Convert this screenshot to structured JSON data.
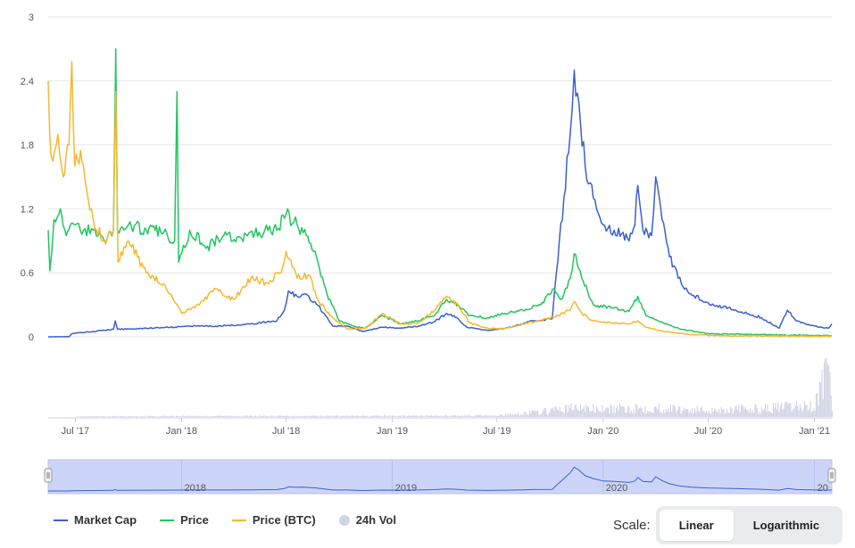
{
  "chart_data": {
    "type": "line",
    "title": "",
    "xlabel": "",
    "ylabel": "",
    "ylim": [
      0,
      3
    ],
    "y_ticks": [
      "0",
      "0.6",
      "1.2",
      "1.8",
      "2.4",
      "3"
    ],
    "y_tick_values": [
      0,
      0.6,
      1.2,
      1.8,
      2.4,
      3
    ],
    "x_range": [
      "2017-05-15",
      "2021-01-31"
    ],
    "x_ticks": [
      {
        "date": "2017-07-01",
        "label": "Jul '17"
      },
      {
        "date": "2018-01-01",
        "label": "Jan '18"
      },
      {
        "date": "2018-07-01",
        "label": "Jul '18"
      },
      {
        "date": "2019-01-01",
        "label": "Jan '19"
      },
      {
        "date": "2019-07-01",
        "label": "Jul '19"
      },
      {
        "date": "2020-01-01",
        "label": "Jan '20"
      },
      {
        "date": "2020-07-01",
        "label": "Jul '20"
      },
      {
        "date": "2021-01-01",
        "label": "Jan '21"
      }
    ],
    "navigator_ticks": [
      {
        "date": "2018-01-01",
        "label": "2018"
      },
      {
        "date": "2019-01-01",
        "label": "2019"
      },
      {
        "date": "2020-01-01",
        "label": "2020"
      },
      {
        "date": "2021-01-01",
        "label": "20"
      }
    ],
    "grid": true,
    "legend_position": "bottom-left",
    "series": [
      {
        "name": "Market Cap",
        "color": "#3b5fcf",
        "points": [
          [
            "2017-05-15",
            0
          ],
          [
            "2017-06-20",
            0
          ],
          [
            "2017-06-25",
            0.03
          ],
          [
            "2017-08-01",
            0.05
          ],
          [
            "2017-09-05",
            0.07
          ],
          [
            "2017-09-08",
            0.15
          ],
          [
            "2017-09-12",
            0.07
          ],
          [
            "2017-11-01",
            0.08
          ],
          [
            "2017-12-20",
            0.09
          ],
          [
            "2018-01-15",
            0.1
          ],
          [
            "2018-03-01",
            0.1
          ],
          [
            "2018-05-01",
            0.12
          ],
          [
            "2018-06-15",
            0.15
          ],
          [
            "2018-06-28",
            0.25
          ],
          [
            "2018-07-05",
            0.43
          ],
          [
            "2018-07-20",
            0.38
          ],
          [
            "2018-08-01",
            0.4
          ],
          [
            "2018-08-20",
            0.33
          ],
          [
            "2018-09-05",
            0.22
          ],
          [
            "2018-09-20",
            0.1
          ],
          [
            "2018-10-15",
            0.1
          ],
          [
            "2018-11-10",
            0.05
          ],
          [
            "2018-12-15",
            0.09
          ],
          [
            "2019-01-15",
            0.08
          ],
          [
            "2019-02-15",
            0.1
          ],
          [
            "2019-03-15",
            0.14
          ],
          [
            "2019-04-05",
            0.22
          ],
          [
            "2019-04-25",
            0.17
          ],
          [
            "2019-05-10",
            0.09
          ],
          [
            "2019-06-15",
            0.06
          ],
          [
            "2019-07-15",
            0.08
          ],
          [
            "2019-08-15",
            0.12
          ],
          [
            "2019-09-01",
            0.15
          ],
          [
            "2019-10-05",
            0.17
          ],
          [
            "2019-10-12",
            0.6
          ],
          [
            "2019-10-25",
            1.3
          ],
          [
            "2019-11-05",
            1.9
          ],
          [
            "2019-11-12",
            2.5
          ],
          [
            "2019-11-20",
            2.2
          ],
          [
            "2019-12-01",
            1.6
          ],
          [
            "2019-12-15",
            1.3
          ],
          [
            "2020-01-01",
            1.05
          ],
          [
            "2020-01-20",
            1.0
          ],
          [
            "2020-02-15",
            0.9
          ],
          [
            "2020-02-25",
            1.05
          ],
          [
            "2020-03-01",
            1.42
          ],
          [
            "2020-03-10",
            1.0
          ],
          [
            "2020-03-25",
            0.95
          ],
          [
            "2020-04-01",
            1.5
          ],
          [
            "2020-04-12",
            1.1
          ],
          [
            "2020-04-25",
            0.75
          ],
          [
            "2020-05-10",
            0.55
          ],
          [
            "2020-06-01",
            0.4
          ],
          [
            "2020-07-01",
            0.32
          ],
          [
            "2020-08-15",
            0.25
          ],
          [
            "2020-10-01",
            0.18
          ],
          [
            "2020-11-01",
            0.08
          ],
          [
            "2020-11-15",
            0.25
          ],
          [
            "2020-12-01",
            0.15
          ],
          [
            "2021-01-01",
            0.1
          ],
          [
            "2021-01-25",
            0.08
          ],
          [
            "2021-01-31",
            0.12
          ]
        ]
      },
      {
        "name": "Price",
        "color": "#22c55e",
        "points": [
          [
            "2017-05-15",
            1.0
          ],
          [
            "2017-05-18",
            0.62
          ],
          [
            "2017-05-25",
            1.1
          ],
          [
            "2017-06-05",
            1.2
          ],
          [
            "2017-06-15",
            0.95
          ],
          [
            "2017-07-01",
            1.05
          ],
          [
            "2017-07-15",
            1.0
          ],
          [
            "2017-08-01",
            1.0
          ],
          [
            "2017-08-20",
            0.9
          ],
          [
            "2017-09-05",
            1.0
          ],
          [
            "2017-09-09",
            2.7
          ],
          [
            "2017-09-12",
            1.0
          ],
          [
            "2017-10-01",
            1.05
          ],
          [
            "2017-11-01",
            1.0
          ],
          [
            "2017-12-01",
            0.98
          ],
          [
            "2017-12-20",
            0.9
          ],
          [
            "2017-12-24",
            2.3
          ],
          [
            "2017-12-27",
            0.7
          ],
          [
            "2018-01-15",
            1.0
          ],
          [
            "2018-02-15",
            0.85
          ],
          [
            "2018-03-15",
            0.95
          ],
          [
            "2018-04-15",
            0.92
          ],
          [
            "2018-05-15",
            0.98
          ],
          [
            "2018-06-15",
            1.0
          ],
          [
            "2018-07-01",
            1.15
          ],
          [
            "2018-07-20",
            1.05
          ],
          [
            "2018-08-05",
            0.95
          ],
          [
            "2018-08-25",
            0.7
          ],
          [
            "2018-09-10",
            0.4
          ],
          [
            "2018-10-01",
            0.15
          ],
          [
            "2018-10-25",
            0.1
          ],
          [
            "2018-11-15",
            0.08
          ],
          [
            "2018-12-15",
            0.2
          ],
          [
            "2019-01-15",
            0.12
          ],
          [
            "2019-02-15",
            0.15
          ],
          [
            "2019-03-15",
            0.2
          ],
          [
            "2019-04-05",
            0.35
          ],
          [
            "2019-04-25",
            0.3
          ],
          [
            "2019-05-15",
            0.2
          ],
          [
            "2019-06-15",
            0.18
          ],
          [
            "2019-07-15",
            0.22
          ],
          [
            "2019-08-15",
            0.25
          ],
          [
            "2019-09-15",
            0.3
          ],
          [
            "2019-10-08",
            0.45
          ],
          [
            "2019-10-20",
            0.35
          ],
          [
            "2019-11-05",
            0.55
          ],
          [
            "2019-11-12",
            0.78
          ],
          [
            "2019-11-25",
            0.55
          ],
          [
            "2019-12-15",
            0.3
          ],
          [
            "2020-01-15",
            0.27
          ],
          [
            "2020-02-15",
            0.24
          ],
          [
            "2020-03-01",
            0.38
          ],
          [
            "2020-03-15",
            0.2
          ],
          [
            "2020-04-15",
            0.13
          ],
          [
            "2020-05-15",
            0.07
          ],
          [
            "2020-07-01",
            0.03
          ],
          [
            "2020-10-01",
            0.02
          ],
          [
            "2021-01-31",
            0.01
          ]
        ]
      },
      {
        "name": "Price (BTC)",
        "color": "#f5b82e",
        "points": [
          [
            "2017-05-15",
            2.4
          ],
          [
            "2017-05-20",
            1.7
          ],
          [
            "2017-06-01",
            1.9
          ],
          [
            "2017-06-10",
            1.5
          ],
          [
            "2017-06-20",
            1.8
          ],
          [
            "2017-06-25",
            2.58
          ],
          [
            "2017-06-30",
            1.6
          ],
          [
            "2017-07-10",
            1.75
          ],
          [
            "2017-07-20",
            1.4
          ],
          [
            "2017-08-01",
            1.1
          ],
          [
            "2017-08-20",
            0.9
          ],
          [
            "2017-09-05",
            1.0
          ],
          [
            "2017-09-09",
            2.3
          ],
          [
            "2017-09-13",
            0.7
          ],
          [
            "2017-10-01",
            0.9
          ],
          [
            "2017-11-01",
            0.6
          ],
          [
            "2017-12-01",
            0.5
          ],
          [
            "2018-01-01",
            0.22
          ],
          [
            "2018-02-01",
            0.3
          ],
          [
            "2018-03-01",
            0.45
          ],
          [
            "2018-04-01",
            0.35
          ],
          [
            "2018-05-01",
            0.55
          ],
          [
            "2018-06-01",
            0.5
          ],
          [
            "2018-06-25",
            0.65
          ],
          [
            "2018-07-01",
            0.8
          ],
          [
            "2018-07-20",
            0.55
          ],
          [
            "2018-08-10",
            0.58
          ],
          [
            "2018-08-25",
            0.35
          ],
          [
            "2018-09-15",
            0.2
          ],
          [
            "2018-10-15",
            0.07
          ],
          [
            "2018-11-15",
            0.08
          ],
          [
            "2018-12-15",
            0.22
          ],
          [
            "2019-01-15",
            0.12
          ],
          [
            "2019-02-15",
            0.13
          ],
          [
            "2019-03-15",
            0.25
          ],
          [
            "2019-04-05",
            0.38
          ],
          [
            "2019-04-25",
            0.3
          ],
          [
            "2019-05-15",
            0.13
          ],
          [
            "2019-06-15",
            0.08
          ],
          [
            "2019-07-15",
            0.08
          ],
          [
            "2019-08-15",
            0.12
          ],
          [
            "2019-09-15",
            0.15
          ],
          [
            "2019-10-15",
            0.2
          ],
          [
            "2019-11-05",
            0.25
          ],
          [
            "2019-11-12",
            0.33
          ],
          [
            "2019-11-25",
            0.22
          ],
          [
            "2019-12-15",
            0.15
          ],
          [
            "2020-01-15",
            0.13
          ],
          [
            "2020-02-15",
            0.12
          ],
          [
            "2020-03-01",
            0.15
          ],
          [
            "2020-03-15",
            0.09
          ],
          [
            "2020-04-15",
            0.05
          ],
          [
            "2020-06-01",
            0.02
          ],
          [
            "2020-08-01",
            0.01
          ],
          [
            "2021-01-31",
            0.005
          ]
        ]
      }
    ],
    "volume": {
      "name": "24h Vol",
      "color": "#cfd4e3",
      "bars_level": [
        [
          "2017-07-01",
          0.01
        ],
        [
          "2018-01-01",
          0.02
        ],
        [
          "2018-07-01",
          0.02
        ],
        [
          "2019-01-01",
          0.02
        ],
        [
          "2019-07-01",
          0.03
        ],
        [
          "2019-09-15",
          0.1
        ],
        [
          "2019-11-12",
          0.18
        ],
        [
          "2020-01-01",
          0.14
        ],
        [
          "2020-03-01",
          0.18
        ],
        [
          "2020-07-01",
          0.13
        ],
        [
          "2020-10-01",
          0.16
        ],
        [
          "2021-01-01",
          0.22
        ],
        [
          "2021-01-20",
          0.95
        ],
        [
          "2021-01-31",
          0.3
        ]
      ]
    }
  },
  "legend": {
    "market_cap": "Market Cap",
    "price": "Price",
    "price_btc": "Price (BTC)",
    "volume": "24h Vol"
  },
  "scale": {
    "label": "Scale:",
    "linear": "Linear",
    "logarithmic": "Logarithmic"
  }
}
